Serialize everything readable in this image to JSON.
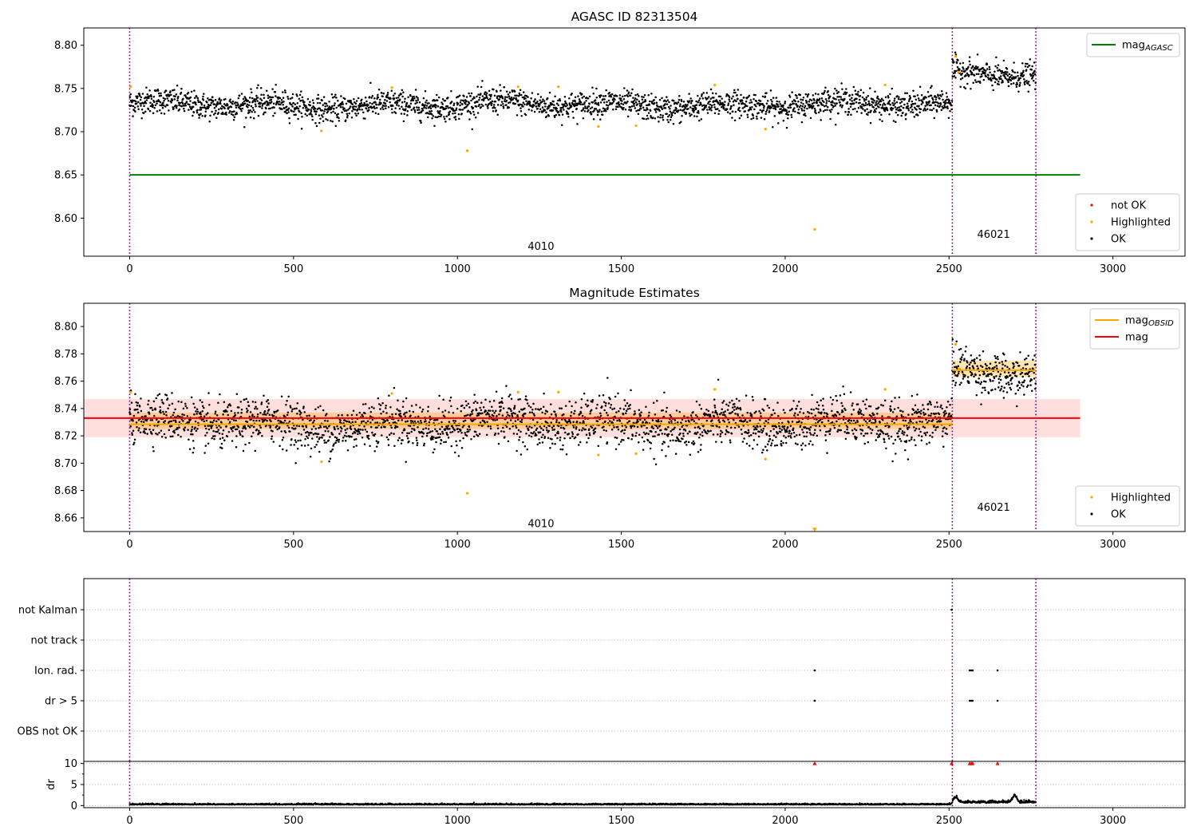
{
  "chart_data": [
    {
      "type": "scatter",
      "title": "AGASC ID 82313504",
      "xlim": [
        -140,
        3220
      ],
      "ylim": [
        8.556,
        8.82
      ],
      "x_ticks": [
        0,
        500,
        1000,
        1500,
        2000,
        2500,
        3000
      ],
      "y_ticks": [
        8.6,
        8.65,
        8.7,
        8.75,
        8.8
      ],
      "y_tick_labels": [
        "8.60",
        "8.65",
        "8.70",
        "8.75",
        "8.80"
      ],
      "obsid_boundaries": [
        0,
        2510,
        2765
      ],
      "obsid_labels": [
        {
          "x": 1255,
          "y": 8.567,
          "text": "4010"
        },
        {
          "x": 2636,
          "y": 8.581,
          "text": "46021"
        }
      ],
      "segments": [
        {
          "x_start": 0,
          "x_end": 2510,
          "mean": 8.731,
          "sd": 0.0075
        },
        {
          "x_start": 2510,
          "x_end": 2765,
          "mean": 8.768,
          "sd": 0.0075
        }
      ],
      "lines": [
        {
          "name": "mag_AGASC",
          "value": 8.65,
          "x_range": [
            0,
            2900
          ],
          "color": "#008000"
        }
      ],
      "highlighted_points": [
        {
          "x": 3,
          "y": 8.752
        },
        {
          "x": 585,
          "y": 8.701
        },
        {
          "x": 800,
          "y": 8.751
        },
        {
          "x": 1030,
          "y": 8.678
        },
        {
          "x": 1185,
          "y": 8.752
        },
        {
          "x": 1308,
          "y": 8.752
        },
        {
          "x": 1430,
          "y": 8.706
        },
        {
          "x": 1545,
          "y": 8.707
        },
        {
          "x": 1785,
          "y": 8.754
        },
        {
          "x": 1940,
          "y": 8.703
        },
        {
          "x": 2090,
          "y": 8.587
        },
        {
          "x": 2305,
          "y": 8.754
        },
        {
          "x": 2520,
          "y": 8.787
        },
        {
          "x": 2530,
          "y": 8.769
        }
      ],
      "not_ok_points": [],
      "legends": [
        {
          "position": "upper-right",
          "entries": [
            {
              "label": "mag",
              "subscript": "AGASC",
              "color": "#008000",
              "kind": "line"
            }
          ]
        },
        {
          "position": "lower-right",
          "entries": [
            {
              "label": "not OK",
              "color": "#ff0000",
              "kind": "dot"
            },
            {
              "label": "Highlighted",
              "color": "#ffa500",
              "kind": "dot"
            },
            {
              "label": "OK",
              "color": "#000000",
              "kind": "dot"
            }
          ]
        }
      ]
    },
    {
      "type": "scatter",
      "title": "Magnitude Estimates",
      "xlim": [
        -140,
        3220
      ],
      "ylim": [
        8.65,
        8.817
      ],
      "x_ticks": [
        0,
        500,
        1000,
        1500,
        2000,
        2500,
        3000
      ],
      "y_ticks": [
        8.66,
        8.68,
        8.7,
        8.72,
        8.74,
        8.76,
        8.78,
        8.8
      ],
      "y_tick_labels": [
        "8.66",
        "8.68",
        "8.70",
        "8.72",
        "8.74",
        "8.76",
        "8.78",
        "8.80"
      ],
      "obsid_boundaries": [
        0,
        2510,
        2765
      ],
      "obsid_labels": [
        {
          "x": 1255,
          "y": 8.6555,
          "text": "4010"
        },
        {
          "x": 2636,
          "y": 8.6675,
          "text": "46021"
        }
      ],
      "segments": [
        {
          "x_start": 0,
          "x_end": 2510,
          "mean": 8.729,
          "sd": 0.0085
        },
        {
          "x_start": 2510,
          "x_end": 2765,
          "mean": 8.768,
          "sd": 0.0075
        }
      ],
      "bands": [
        {
          "x_range": [
            -140,
            2900
          ],
          "y_range": [
            8.719,
            8.747
          ],
          "color": "#ff0000",
          "opacity": 0.13
        },
        {
          "x_range": [
            0,
            2510
          ],
          "y_range": [
            8.725,
            8.737
          ],
          "color": "#ffa500",
          "opacity": 0.3
        },
        {
          "x_range": [
            2510,
            2765
          ],
          "y_range": [
            8.763,
            8.775
          ],
          "color": "#ffa500",
          "opacity": 0.3
        }
      ],
      "lines": [
        {
          "name": "mag_OBSID",
          "value": 8.7285,
          "x_range": [
            0,
            2510
          ],
          "color": "#ffa500"
        },
        {
          "name": "mag_OBSID",
          "value": 8.768,
          "x_range": [
            2510,
            2765
          ],
          "color": "#ffa500"
        },
        {
          "name": "mag",
          "value": 8.733,
          "x_range": [
            -140,
            2900
          ],
          "color": "#ff0000"
        }
      ],
      "highlighted_points": [
        {
          "x": 3,
          "y": 8.752
        },
        {
          "x": 585,
          "y": 8.701
        },
        {
          "x": 800,
          "y": 8.751
        },
        {
          "x": 1030,
          "y": 8.678
        },
        {
          "x": 1185,
          "y": 8.752
        },
        {
          "x": 1308,
          "y": 8.752
        },
        {
          "x": 1430,
          "y": 8.706
        },
        {
          "x": 1545,
          "y": 8.707
        },
        {
          "x": 1785,
          "y": 8.754
        },
        {
          "x": 1940,
          "y": 8.703
        },
        {
          "x": 2305,
          "y": 8.754
        },
        {
          "x": 2520,
          "y": 8.787
        },
        {
          "x": 2530,
          "y": 8.769
        }
      ],
      "out_of_range_markers": [
        {
          "x": 2090,
          "y": 8.651
        }
      ],
      "legends": [
        {
          "position": "upper-right",
          "entries": [
            {
              "label": "mag",
              "subscript": "OBSID",
              "color": "#ffa500",
              "kind": "line"
            },
            {
              "label": "mag",
              "subscript": "",
              "color": "#ff0000",
              "kind": "line"
            }
          ]
        },
        {
          "position": "lower-right",
          "entries": [
            {
              "label": "Highlighted",
              "color": "#ffa500",
              "kind": "dot"
            },
            {
              "label": "OK",
              "color": "#000000",
              "kind": "dot"
            }
          ]
        }
      ]
    },
    {
      "type": "scatter",
      "title": "",
      "xlim": [
        -140,
        3220
      ],
      "flag_rows": [
        "not Kalman",
        "not track",
        "Ion. rad.",
        "dr > 5",
        "OBS not OK"
      ],
      "flag_points": [
        {
          "flag": "not Kalman",
          "x": [
            2508
          ]
        },
        {
          "flag": "not track",
          "x": []
        },
        {
          "flag": "Ion. rad.",
          "x": [
            2090,
            2563,
            2568,
            2572,
            2648
          ]
        },
        {
          "flag": "dr > 5",
          "x": [
            2090,
            2563,
            2568,
            2572,
            2648
          ]
        },
        {
          "flag": "OBS not OK",
          "x": []
        }
      ],
      "obsid_boundaries": [
        0,
        2510,
        2765
      ]
    },
    {
      "type": "scatter",
      "title": "",
      "ylabel": "dr",
      "xlim": [
        -140,
        3220
      ],
      "ylim": [
        -0.5,
        10.5
      ],
      "x_ticks": [
        0,
        500,
        1000,
        1500,
        2000,
        2500,
        3000
      ],
      "y_ticks": [
        0,
        5,
        10
      ],
      "y_tick_labels": [
        "0",
        "5",
        "10"
      ],
      "obsid_boundaries": [
        0,
        2510,
        2765
      ],
      "clipped_markers": [
        {
          "x": 2090,
          "y": 10
        },
        {
          "x": 2508,
          "y": 10
        },
        {
          "x": 2563,
          "y": 10
        },
        {
          "x": 2568,
          "y": 10
        },
        {
          "x": 2572,
          "y": 10
        },
        {
          "x": 2648,
          "y": 10
        }
      ],
      "dr_bumps": [
        {
          "x": 2520,
          "height": 1.2
        },
        {
          "x": 2700,
          "height": 1.6
        }
      ]
    }
  ]
}
